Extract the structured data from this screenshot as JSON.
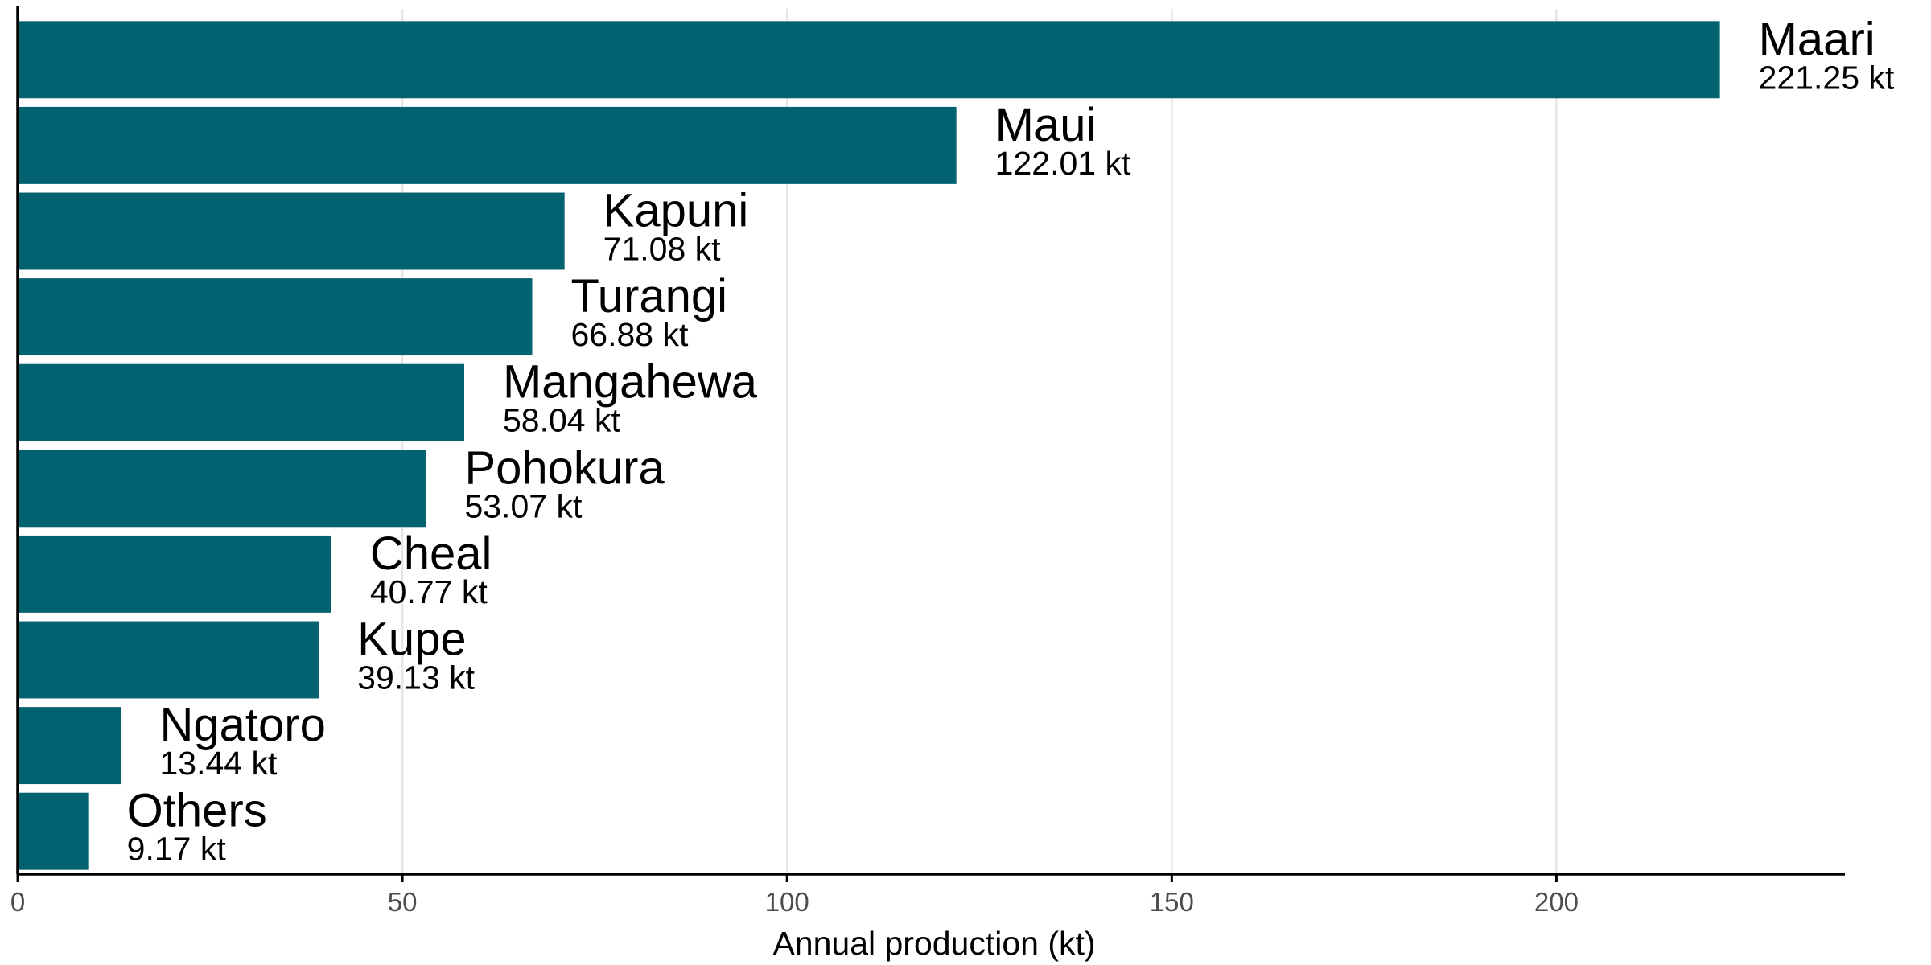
{
  "chart_data": {
    "type": "bar",
    "orientation": "horizontal",
    "categories": [
      "Maari",
      "Maui",
      "Kapuni",
      "Turangi",
      "Mangahewa",
      "Pohokura",
      "Cheal",
      "Kupe",
      "Ngatoro",
      "Others"
    ],
    "values": [
      221.25,
      122.01,
      71.08,
      66.88,
      58.04,
      53.07,
      40.77,
      39.13,
      13.44,
      9.17
    ],
    "value_labels": [
      "221.25 kt",
      "122.01 kt",
      "71.08 kt",
      "66.88 kt",
      "58.04 kt",
      "53.07 kt",
      "40.77 kt",
      "39.13 kt",
      "13.44 kt",
      "9.17 kt"
    ],
    "xlabel": "Annual production (kt)",
    "ylabel": "",
    "xlim": [
      0,
      237.5
    ],
    "xticks": [
      0,
      50,
      100,
      150,
      200
    ],
    "xtick_labels": [
      "0",
      "50",
      "100",
      "150",
      "200"
    ],
    "bar_color": "#03626f",
    "grid": "vertical major gridlines",
    "legend": "none"
  }
}
